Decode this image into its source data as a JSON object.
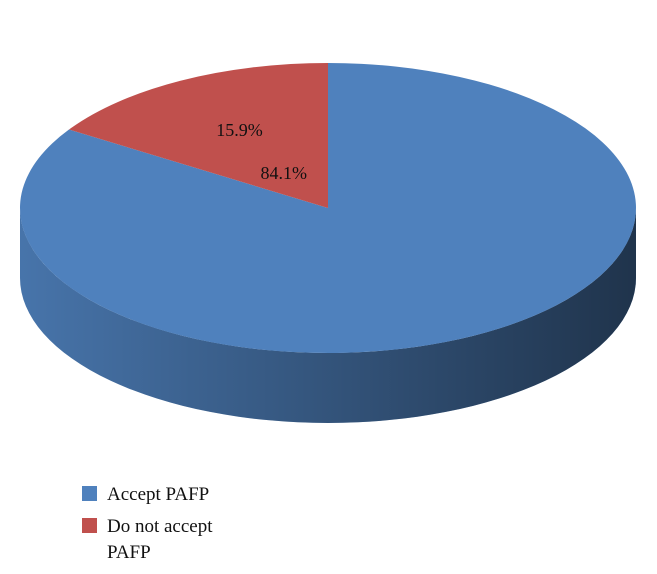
{
  "chart_data": {
    "type": "pie",
    "categories": [
      "Accept PAFP",
      "Do not accept PAFP"
    ],
    "values": [
      84.1,
      15.9
    ],
    "value_labels": [
      "84.1%",
      "15.9%"
    ],
    "colors": [
      "#4f81bd",
      "#c0504d"
    ]
  }
}
